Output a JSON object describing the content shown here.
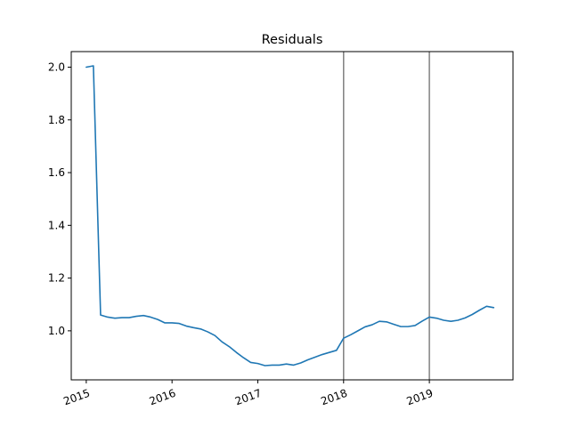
{
  "chart_data": {
    "type": "line",
    "title": "Residuals",
    "xlabel": "",
    "ylabel": "",
    "xlim": [
      2014.825,
      2019.975
    ],
    "ylim": [
      0.814,
      2.059
    ],
    "x_ticks": [
      2015,
      2016,
      2017,
      2018,
      2019
    ],
    "x_tick_labels": [
      "2015",
      "2016",
      "2017",
      "2018",
      "2019"
    ],
    "y_ticks": [
      1.0,
      1.2,
      1.4,
      1.6,
      1.8,
      2.0
    ],
    "y_tick_labels": [
      "1.0",
      "1.2",
      "1.4",
      "1.6",
      "1.8",
      "2.0"
    ],
    "grid": false,
    "vertical_lines": {
      "x": [
        2018,
        2019
      ],
      "color": "#808080"
    },
    "series": [
      {
        "name": "residuals",
        "color": "#1f77b4",
        "x": [
          2015.0,
          2015.083,
          2015.167,
          2015.25,
          2015.333,
          2015.417,
          2015.5,
          2015.583,
          2015.667,
          2015.75,
          2015.833,
          2015.917,
          2016.0,
          2016.083,
          2016.167,
          2016.25,
          2016.333,
          2016.417,
          2016.5,
          2016.583,
          2016.667,
          2016.75,
          2016.833,
          2016.917,
          2017.0,
          2017.083,
          2017.167,
          2017.25,
          2017.333,
          2017.417,
          2017.5,
          2017.583,
          2017.667,
          2017.75,
          2017.833,
          2017.917,
          2018.0,
          2018.083,
          2018.167,
          2018.25,
          2018.333,
          2018.417,
          2018.5,
          2018.583,
          2018.667,
          2018.75,
          2018.833,
          2018.917,
          2019.0,
          2019.083,
          2019.167,
          2019.25,
          2019.333,
          2019.417,
          2019.5,
          2019.583,
          2019.667,
          2019.75
        ],
        "y": [
          2.0,
          2.005,
          1.06,
          1.052,
          1.048,
          1.05,
          1.05,
          1.055,
          1.058,
          1.052,
          1.043,
          1.03,
          1.03,
          1.028,
          1.018,
          1.012,
          1.007,
          0.996,
          0.982,
          0.958,
          0.94,
          0.918,
          0.898,
          0.88,
          0.876,
          0.868,
          0.87,
          0.87,
          0.874,
          0.87,
          0.878,
          0.89,
          0.9,
          0.91,
          0.918,
          0.926,
          0.972,
          0.985,
          1.0,
          1.015,
          1.023,
          1.036,
          1.034,
          1.025,
          1.016,
          1.016,
          1.02,
          1.037,
          1.052,
          1.048,
          1.04,
          1.036,
          1.04,
          1.049,
          1.062,
          1.078,
          1.093,
          1.088
        ]
      }
    ]
  }
}
